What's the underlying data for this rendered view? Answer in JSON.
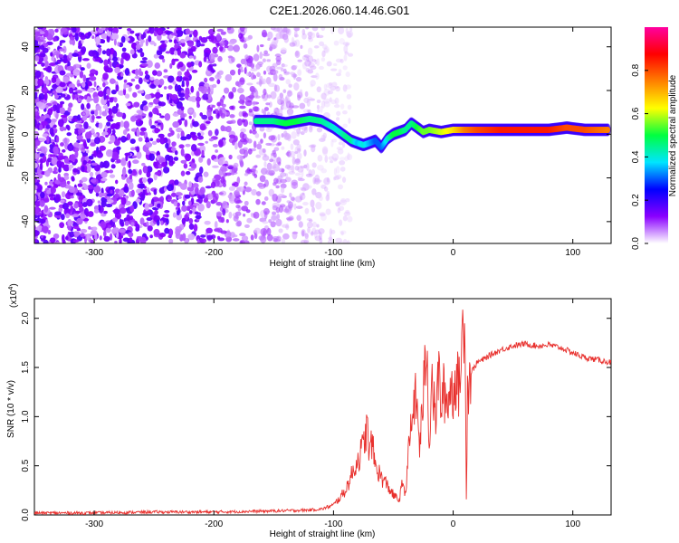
{
  "title": "C2E1.2026.060.14.46.G01",
  "chart_data": [
    {
      "type": "heatmap",
      "xlabel": "Height of straight line (km)",
      "ylabel": "Frequency (Hz)",
      "xlim": [
        -350,
        132
      ],
      "ylim": [
        -50,
        49
      ],
      "x_ticks": [
        -300,
        -200,
        -100,
        0,
        100
      ],
      "x_tick_labels": [
        "-300",
        "-200",
        "-100",
        "0",
        "100"
      ],
      "y_ticks": [
        -40,
        -20,
        0,
        20,
        40
      ],
      "y_tick_labels": [
        "-40",
        "-20",
        "0",
        "20",
        "40"
      ],
      "grid": false,
      "colorbar": {
        "label": "Normalized spectral amplitude",
        "range": [
          0,
          1
        ],
        "ticks": [
          0.0,
          0.2,
          0.4,
          0.6,
          0.8
        ],
        "tick_labels": [
          "0.0",
          "0.2",
          "0.4",
          "0.6",
          "0.8"
        ],
        "colors": [
          "#ffffff",
          "#8a00ff",
          "#0000ff",
          "#00e5ff",
          "#00ff40",
          "#ffff00",
          "#ff8000",
          "#ff0000",
          "#ff00a0"
        ]
      },
      "noise_region_x": [
        -350,
        -100
      ],
      "ridge": {
        "x": [
          -165,
          -150,
          -140,
          -130,
          -120,
          -110,
          -100,
          -95,
          -90,
          -85,
          -80,
          -75,
          -70,
          -65,
          -60,
          -55,
          -50,
          -45,
          -40,
          -35,
          -30,
          -25,
          -20,
          -10,
          0,
          10,
          20,
          40,
          60,
          80,
          95,
          110,
          130
        ],
        "y": [
          6,
          6,
          5,
          6,
          7,
          6,
          3,
          1,
          -1,
          -3,
          -4,
          -5,
          -4,
          -3,
          -6,
          -2,
          0,
          1,
          2,
          5,
          3,
          1,
          2,
          1,
          2,
          2,
          2,
          2,
          2,
          2,
          3,
          2,
          2
        ],
        "amplitude": [
          0.45,
          0.45,
          0.5,
          0.5,
          0.45,
          0.45,
          0.4,
          0.4,
          0.45,
          0.45,
          0.35,
          0.4,
          0.35,
          0.3,
          0.3,
          0.4,
          0.5,
          0.5,
          0.45,
          0.45,
          0.5,
          0.55,
          0.55,
          0.6,
          0.65,
          0.75,
          0.8,
          0.85,
          0.85,
          0.85,
          0.8,
          0.8,
          0.75
        ]
      }
    },
    {
      "type": "line",
      "xlabel": "Height of straight line (km)",
      "ylabel": "SNR (10 * v/v)",
      "y_multiplier_label": "(x10",
      "y_multiplier_exp": "4",
      "y_multiplier_close": ")",
      "xlim": [
        -350,
        132
      ],
      "ylim": [
        0,
        2.2
      ],
      "x_ticks": [
        -300,
        -200,
        -100,
        0,
        100
      ],
      "x_tick_labels": [
        "-300",
        "-200",
        "-100",
        "0",
        "100"
      ],
      "y_ticks": [
        0.0,
        0.5,
        1.0,
        1.5,
        2.0
      ],
      "y_tick_labels": [
        "0.0",
        "0.5",
        "1.0",
        "1.5",
        "2.0"
      ],
      "grid": false,
      "color": "#e8302d",
      "series": [
        {
          "x": [
            -350,
            -300,
            -250,
            -200,
            -150,
            -120,
            -110,
            -100,
            -95,
            -90,
            -85,
            -80,
            -75,
            -72,
            -70,
            -68,
            -65,
            -60,
            -55,
            -50,
            -45,
            -42,
            -40,
            -38,
            -35,
            -32,
            -30,
            -28,
            -25,
            -22,
            -20,
            -18,
            -15,
            -12,
            -10,
            -8,
            -5,
            -2,
            0,
            2,
            5,
            8,
            10,
            11,
            12,
            15,
            20,
            25,
            30,
            40,
            50,
            60,
            70,
            80,
            90,
            100,
            110,
            120,
            132
          ],
          "y": [
            0.02,
            0.02,
            0.03,
            0.03,
            0.04,
            0.05,
            0.06,
            0.1,
            0.17,
            0.25,
            0.4,
            0.55,
            0.7,
            0.9,
            0.6,
            0.75,
            0.5,
            0.38,
            0.3,
            0.2,
            0.15,
            0.35,
            0.2,
            0.55,
            0.9,
            1.2,
            1.05,
            0.7,
            1.2,
            1.75,
            0.7,
            1.45,
            0.95,
            1.45,
            1.1,
            1.25,
            1.15,
            1.3,
            1.25,
            1.4,
            1.3,
            1.85,
            2.15,
            0.15,
            1.3,
            1.45,
            1.55,
            1.58,
            1.62,
            1.68,
            1.72,
            1.74,
            1.72,
            1.73,
            1.7,
            1.65,
            1.6,
            1.58,
            1.55
          ]
        }
      ]
    }
  ]
}
